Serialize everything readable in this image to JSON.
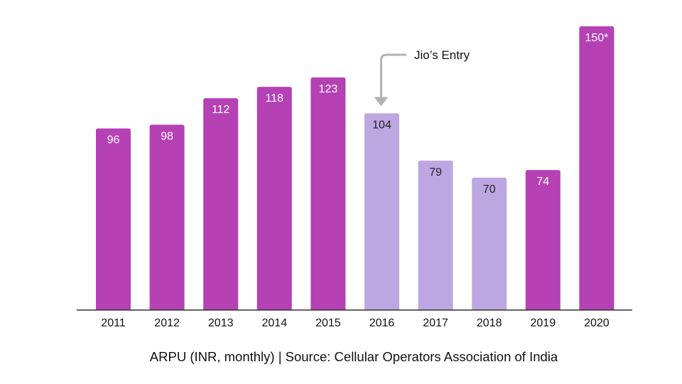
{
  "chart_data": {
    "type": "bar",
    "categories": [
      "2011",
      "2012",
      "2013",
      "2014",
      "2015",
      "2016",
      "2017",
      "2018",
      "2019",
      "2020"
    ],
    "values": [
      96,
      98,
      112,
      118,
      123,
      104,
      79,
      70,
      74,
      150
    ],
    "data_labels": [
      "96",
      "98",
      "112",
      "118",
      "123",
      "104",
      "79",
      "70",
      "74",
      "150*"
    ],
    "highlighted": [
      false,
      false,
      false,
      false,
      false,
      true,
      true,
      true,
      false,
      false
    ],
    "ylim": [
      0,
      150
    ],
    "grid": false,
    "legend": "none",
    "colors": {
      "primary": "#B541B5",
      "highlight": "#BDA7E2",
      "label_on_primary": "#ffffff",
      "label_on_highlight": "#222222",
      "axis": "#333333",
      "annotation_arrow": "#B3B3B3"
    },
    "annotation": {
      "text": "Jio’s Entry",
      "target_category": "2016"
    },
    "caption": "ARPU (INR, monthly) | Source: Cellular Operators Association of India"
  }
}
